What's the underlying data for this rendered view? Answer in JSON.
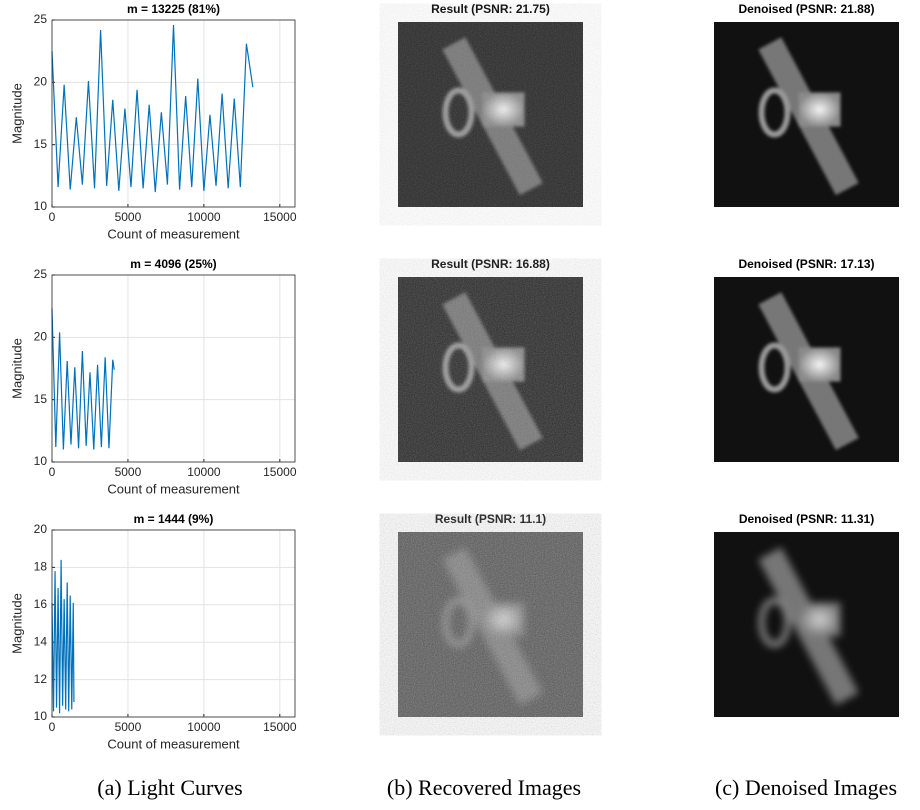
{
  "chart_data": [
    {
      "type": "line",
      "title": "m = 13225 (81%)",
      "x_label": "Count of measurement",
      "y_label": "Magnitude",
      "color": "#0072bd",
      "grid": true,
      "xlim": [
        0,
        16000
      ],
      "xticks": [
        0,
        5000,
        10000,
        15000
      ],
      "ylim": [
        10,
        25
      ],
      "yticks": [
        10,
        15,
        20,
        25
      ],
      "x": [
        0,
        400,
        800,
        1200,
        1600,
        2000,
        2400,
        2800,
        3200,
        3600,
        4000,
        4400,
        4800,
        5200,
        5600,
        6000,
        6400,
        6800,
        7200,
        7600,
        8000,
        8400,
        8800,
        9200,
        9600,
        10000,
        10400,
        10800,
        11200,
        11600,
        12000,
        12400,
        12800,
        13225
      ],
      "values": [
        22.5,
        11.6,
        19.8,
        11.4,
        17.2,
        11.8,
        20.1,
        11.5,
        24.2,
        11.7,
        18.6,
        11.3,
        17.9,
        11.6,
        19.4,
        11.5,
        18.2,
        11.2,
        17.6,
        11.8,
        24.6,
        11.4,
        18.9,
        11.6,
        20.3,
        11.3,
        17.4,
        11.7,
        19.1,
        11.5,
        18.7,
        11.6,
        23.1,
        19.6
      ]
    },
    {
      "type": "line",
      "title": "m = 4096 (25%)",
      "x_label": "Count of measurement",
      "y_label": "Magnitude",
      "color": "#0072bd",
      "grid": true,
      "xlim": [
        0,
        16000
      ],
      "xticks": [
        0,
        5000,
        10000,
        15000
      ],
      "ylim": [
        10,
        25
      ],
      "yticks": [
        10,
        15,
        20,
        25
      ],
      "x": [
        0,
        250,
        500,
        750,
        1000,
        1250,
        1500,
        1750,
        2000,
        2250,
        2500,
        2750,
        3000,
        3250,
        3500,
        3750,
        4000,
        4096
      ],
      "values": [
        22.3,
        11.2,
        20.4,
        11.0,
        18.1,
        11.4,
        17.6,
        11.1,
        18.9,
        11.3,
        17.2,
        11.0,
        17.8,
        11.2,
        18.4,
        11.1,
        18.2,
        17.4
      ]
    },
    {
      "type": "line",
      "title": "m = 1444 (9%)",
      "x_label": "Count of measurement",
      "y_label": "Magnitude",
      "color": "#0072bd",
      "grid": true,
      "xlim": [
        0,
        16000
      ],
      "xticks": [
        0,
        5000,
        10000,
        15000
      ],
      "ylim": [
        10,
        20
      ],
      "yticks": [
        10,
        12,
        14,
        16,
        18,
        20
      ],
      "x": [
        0,
        100,
        200,
        300,
        400,
        500,
        600,
        700,
        800,
        900,
        1000,
        1100,
        1200,
        1300,
        1400,
        1444
      ],
      "values": [
        16.1,
        10.3,
        17.8,
        10.5,
        16.9,
        10.2,
        18.4,
        10.6,
        16.3,
        10.4,
        17.2,
        10.3,
        16.5,
        10.4,
        16.1,
        10.8
      ]
    }
  ],
  "images": [
    [
      "Result (PSNR: 21.75)",
      "Denoised (PSNR: 21.88)"
    ],
    [
      "Result (PSNR: 16.88)",
      "Denoised (PSNR: 17.13)"
    ],
    [
      "Result (PSNR: 11.1)",
      "Denoised (PSNR: 11.31)"
    ]
  ],
  "captions": [
    "(a) Light Curves",
    "(b) Recovered Images",
    "(c) Denoised Images"
  ]
}
